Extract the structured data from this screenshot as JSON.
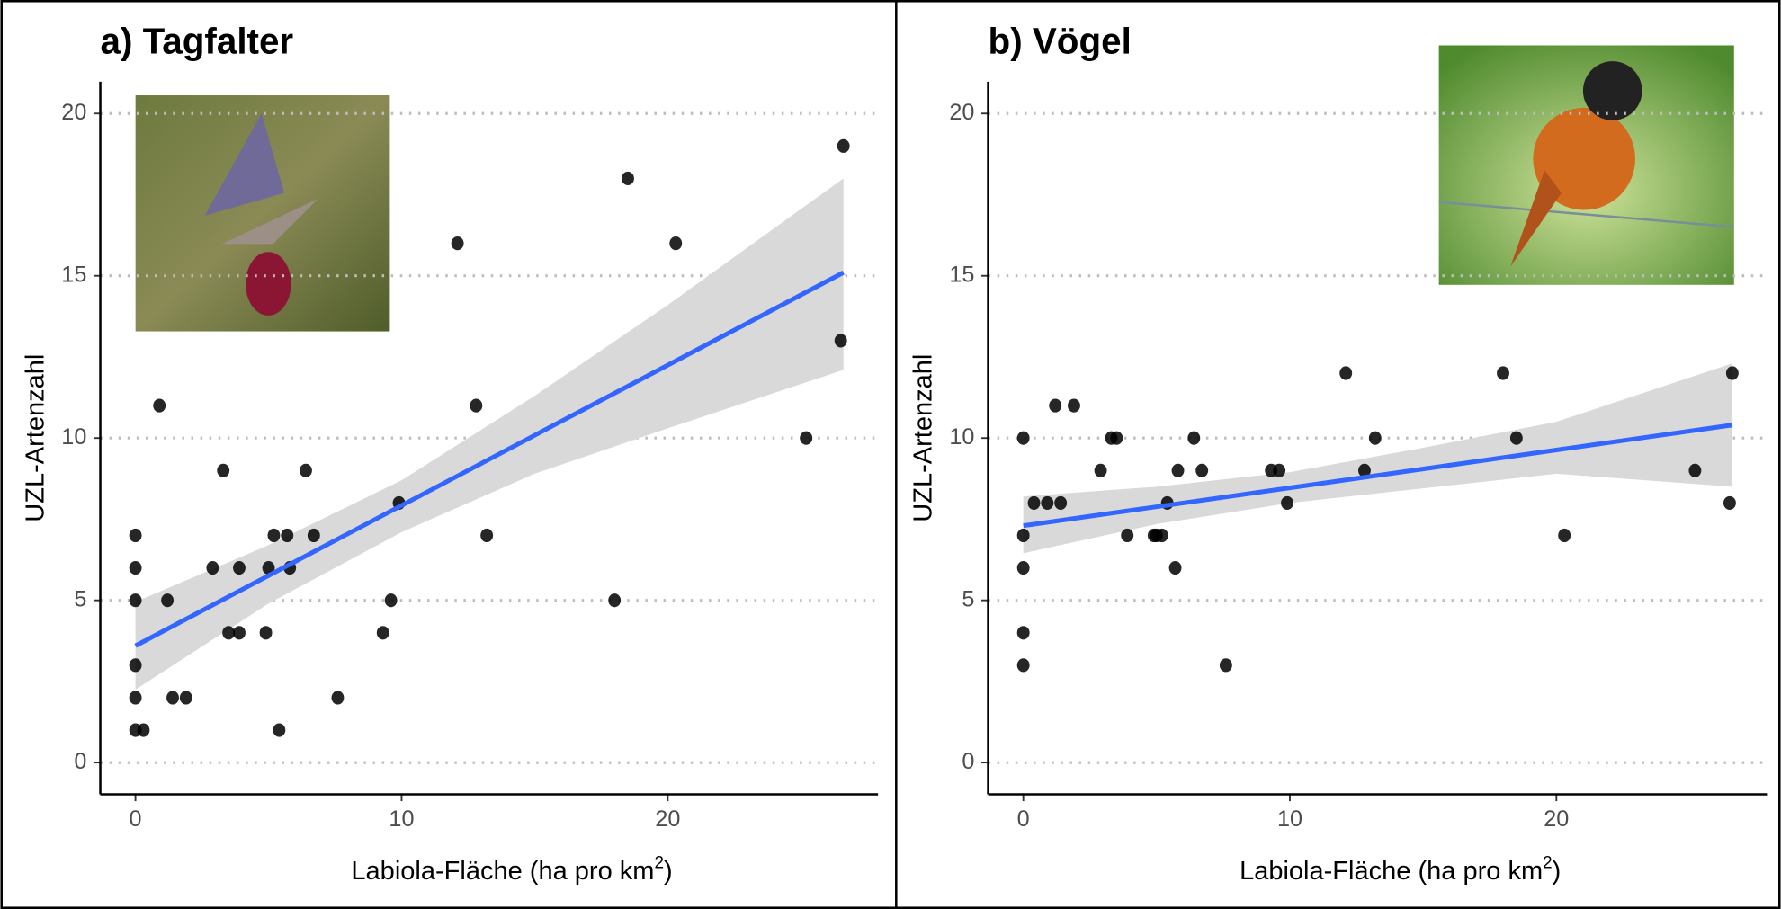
{
  "chart_data": [
    {
      "type": "scatter",
      "title": "a) Tagfalter",
      "ylabel": "UZL-Artenzahl",
      "xlabel": [
        "Labiola-Fläche (ha pro km",
        "2",
        ")"
      ],
      "xlim": [
        -1.32,
        27.9
      ],
      "ylim": [
        -0.98,
        20.98
      ],
      "xticks": [
        0,
        10,
        20
      ],
      "yticks": [
        0,
        5,
        10,
        15,
        20
      ],
      "grid": true,
      "color": "#000000",
      "line_color": "#3366ff",
      "band_color": "#d9d9d9",
      "x": [
        0,
        0,
        0,
        0,
        0,
        0,
        0.3,
        0.9,
        1.2,
        1.4,
        1.9,
        2.9,
        3.3,
        3.5,
        3.9,
        3.9,
        4.9,
        5.0,
        5.2,
        5.4,
        5.7,
        5.8,
        6.4,
        6.7,
        7.6,
        9.3,
        9.6,
        9.9,
        12.1,
        12.8,
        13.2,
        18.0,
        18.5,
        20.3,
        25.2,
        26.5,
        26.6
      ],
      "y": [
        7,
        6,
        5,
        3,
        2,
        1,
        1,
        11,
        5,
        2,
        2,
        6,
        9,
        4,
        6,
        4,
        4,
        6,
        7,
        1,
        7,
        6,
        9,
        7,
        2,
        4,
        5,
        8,
        16,
        11,
        7,
        5,
        18,
        16,
        10,
        13,
        19
      ],
      "fit": {
        "x": [
          0,
          26.6
        ],
        "y": [
          3.6,
          15.1
        ]
      },
      "band": {
        "x": [
          0,
          5,
          10,
          15,
          20,
          26.6
        ],
        "lower": [
          2.25,
          4.9,
          7.1,
          8.9,
          10.3,
          12.1
        ],
        "upper": [
          4.95,
          6.7,
          8.7,
          11.3,
          14.1,
          18.0
        ]
      }
    },
    {
      "type": "scatter",
      "title": "b) Vögel",
      "ylabel": "UZL-Artenzahl",
      "xlabel": [
        "Labiola-Fläche (ha pro km",
        "2",
        ")"
      ],
      "xlim": [
        -1.32,
        27.9
      ],
      "ylim": [
        -0.98,
        20.98
      ],
      "xticks": [
        0,
        10,
        20
      ],
      "yticks": [
        0,
        5,
        10,
        15,
        20
      ],
      "grid": true,
      "color": "#000000",
      "line_color": "#3366ff",
      "band_color": "#d9d9d9",
      "x": [
        0,
        0,
        0,
        0,
        0,
        0.4,
        0.9,
        1.2,
        1.4,
        1.9,
        2.9,
        3.3,
        3.5,
        3.9,
        4.9,
        5.0,
        5.2,
        5.4,
        5.7,
        5.8,
        6.4,
        6.7,
        7.6,
        9.3,
        9.6,
        9.9,
        12.1,
        12.8,
        13.2,
        18.0,
        18.5,
        20.3,
        25.2,
        26.5,
        26.6
      ],
      "y": [
        10,
        7,
        6,
        4,
        3,
        8,
        8,
        11,
        8,
        11,
        9,
        10,
        10,
        7,
        7,
        7,
        7,
        8,
        6,
        9,
        10,
        9,
        3,
        9,
        9,
        8,
        12,
        9,
        10,
        12,
        10,
        7,
        9,
        8,
        12
      ],
      "fit": {
        "x": [
          0,
          26.6
        ],
        "y": [
          7.3,
          10.4
        ]
      },
      "band": {
        "x": [
          0,
          5,
          10,
          15,
          20,
          26.6
        ],
        "lower": [
          6.45,
          7.35,
          8.0,
          8.45,
          8.9,
          8.5
        ],
        "upper": [
          8.2,
          8.5,
          8.95,
          9.7,
          10.5,
          12.3
        ]
      }
    }
  ]
}
